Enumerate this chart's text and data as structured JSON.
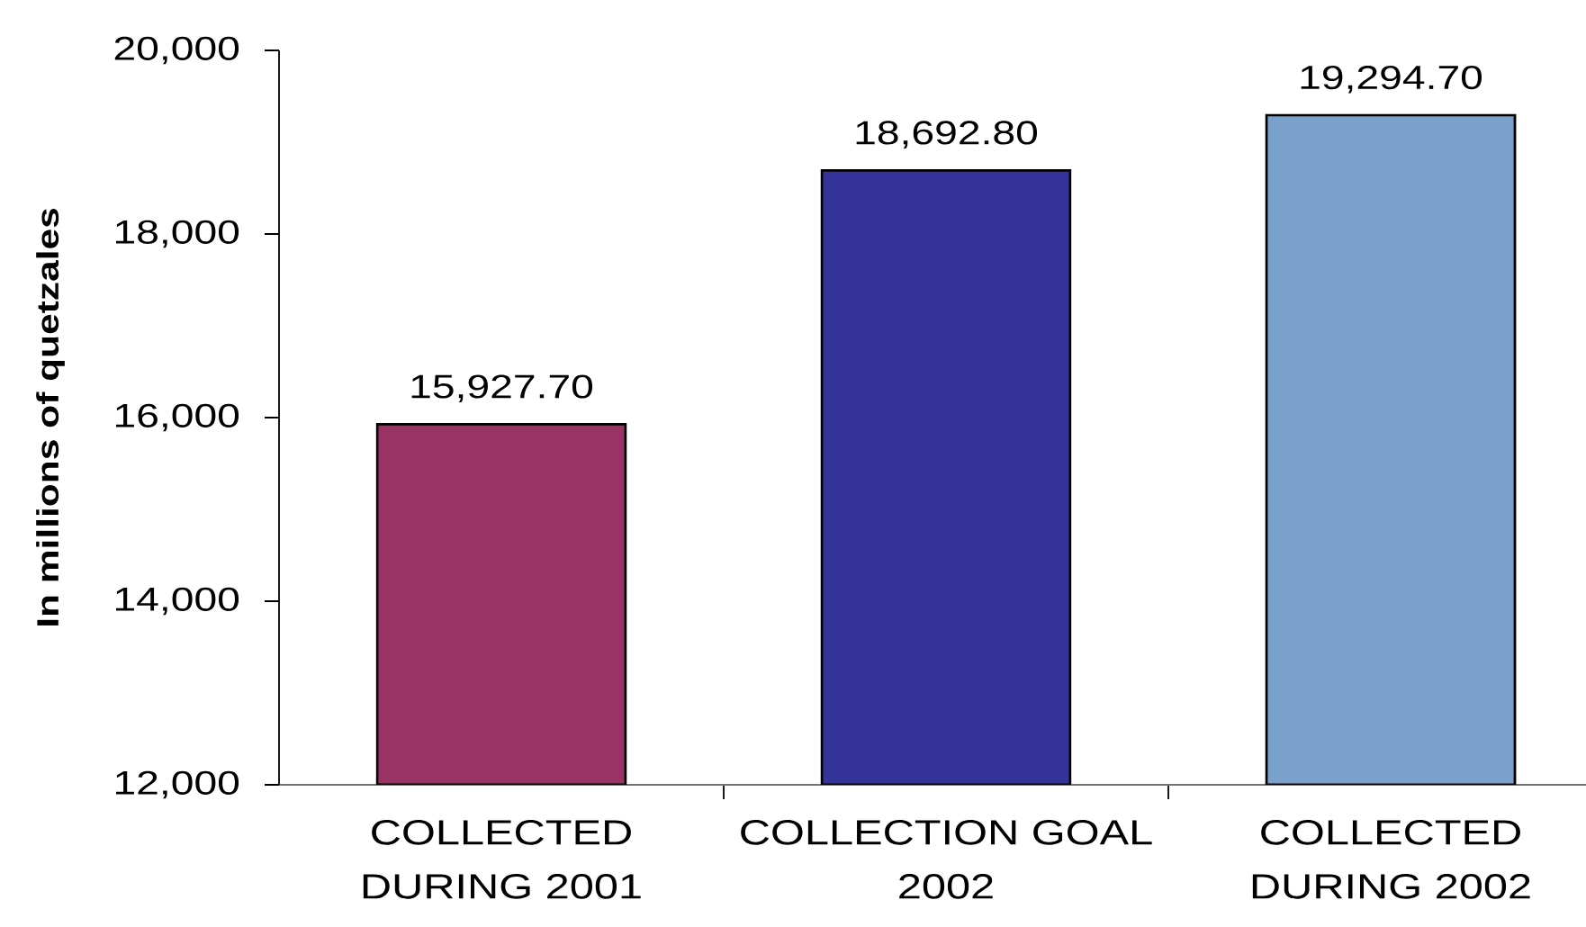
{
  "chart_data": {
    "type": "bar",
    "ylabel": "In millions of quetzales",
    "categories": [
      "COLLECTED DURING 2001",
      "COLLECTION GOAL 2002",
      "COLLECTED DURING 2002"
    ],
    "values": [
      15927.7,
      18692.8,
      19294.7
    ],
    "value_labels": [
      "15,927.70",
      "18,692.80",
      "19,294.70"
    ],
    "colors": [
      "#993366",
      "#333399",
      "#7aa0cc"
    ],
    "ylim": [
      12000,
      20000
    ],
    "yticks": [
      {
        "value": 12000,
        "label": "12,000"
      },
      {
        "value": 14000,
        "label": "14,000"
      },
      {
        "value": 16000,
        "label": "16,000"
      },
      {
        "value": 18000,
        "label": "18,000"
      },
      {
        "value": 20000,
        "label": "20,000"
      }
    ]
  }
}
